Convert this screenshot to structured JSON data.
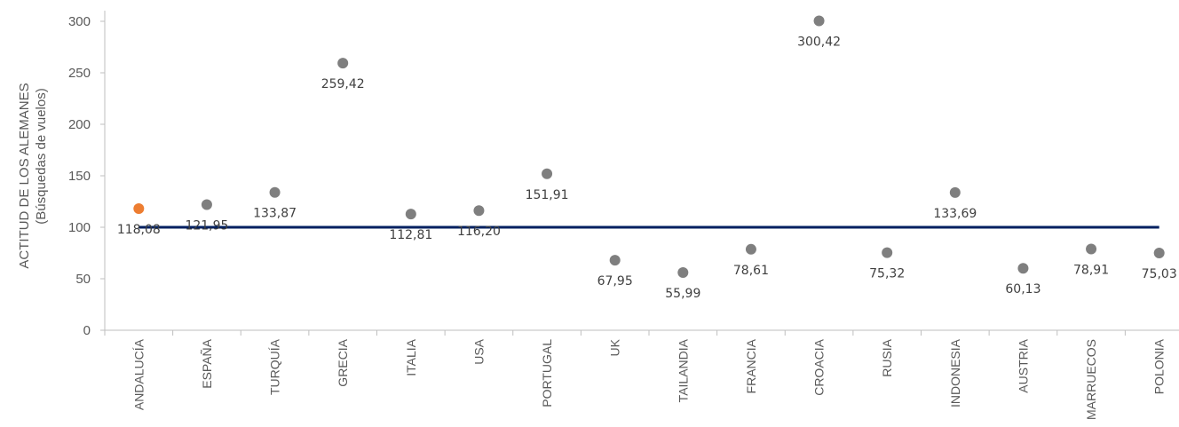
{
  "chart_data": {
    "type": "scatter",
    "ylabel": "ACTITUD DE LOS ALEMANES",
    "ylabel_sub": "(Búsquedas de vuelos)",
    "ylim": [
      0,
      300
    ],
    "yticks": [
      "0",
      "50",
      "100",
      "150",
      "200",
      "250",
      "300"
    ],
    "reference_line": 100,
    "categories": [
      "ANDALUCÍA",
      "ESPAÑA",
      "TURQUÍA",
      "GRECIA",
      "ITALIA",
      "USA",
      "PORTUGAL",
      "UK",
      "TAILANDIA",
      "FRANCIA",
      "CROACIA",
      "RUSIA",
      "INDONESIA",
      "AUSTRIA",
      "MARRUECOS",
      "POLONIA"
    ],
    "values": [
      118.08,
      121.95,
      133.87,
      259.42,
      112.81,
      116.2,
      151.91,
      67.95,
      55.99,
      78.61,
      300.42,
      75.32,
      133.69,
      60.13,
      78.91,
      75.03
    ],
    "value_labels": [
      "118,08",
      "121,95",
      "133,87",
      "259,42",
      "112,81",
      "116,20",
      "151,91",
      "67,95",
      "55,99",
      "78,61",
      "300,42",
      "75,32",
      "133,69",
      "60,13",
      "78,91",
      "75,03"
    ],
    "highlight_index": 0,
    "colors": {
      "point": "#7f7f7f",
      "highlight": "#ed7d31",
      "line": "#002060",
      "axis": "#bfbfbf"
    },
    "grid": false,
    "legend": "none"
  }
}
